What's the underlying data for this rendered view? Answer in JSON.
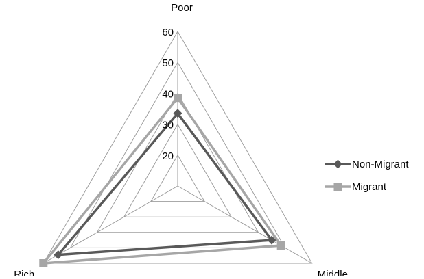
{
  "chart_data": {
    "type": "radar",
    "axes": [
      "Poor",
      "Middle",
      "Rich"
    ],
    "radial_ticks": [
      "20",
      "30",
      "40",
      "50",
      "60"
    ],
    "rmin": 10,
    "rmax": 60,
    "grid_step": 10,
    "series": [
      {
        "name": "Non-Migrant",
        "values": [
          33.5,
          45.0,
          54.5
        ],
        "color": "#595959",
        "marker": "diamond"
      },
      {
        "name": "Migrant",
        "values": [
          38.5,
          48.5,
          60.0
        ],
        "color": "#a6a6a6",
        "marker": "square"
      }
    ],
    "legend_position": "right"
  }
}
